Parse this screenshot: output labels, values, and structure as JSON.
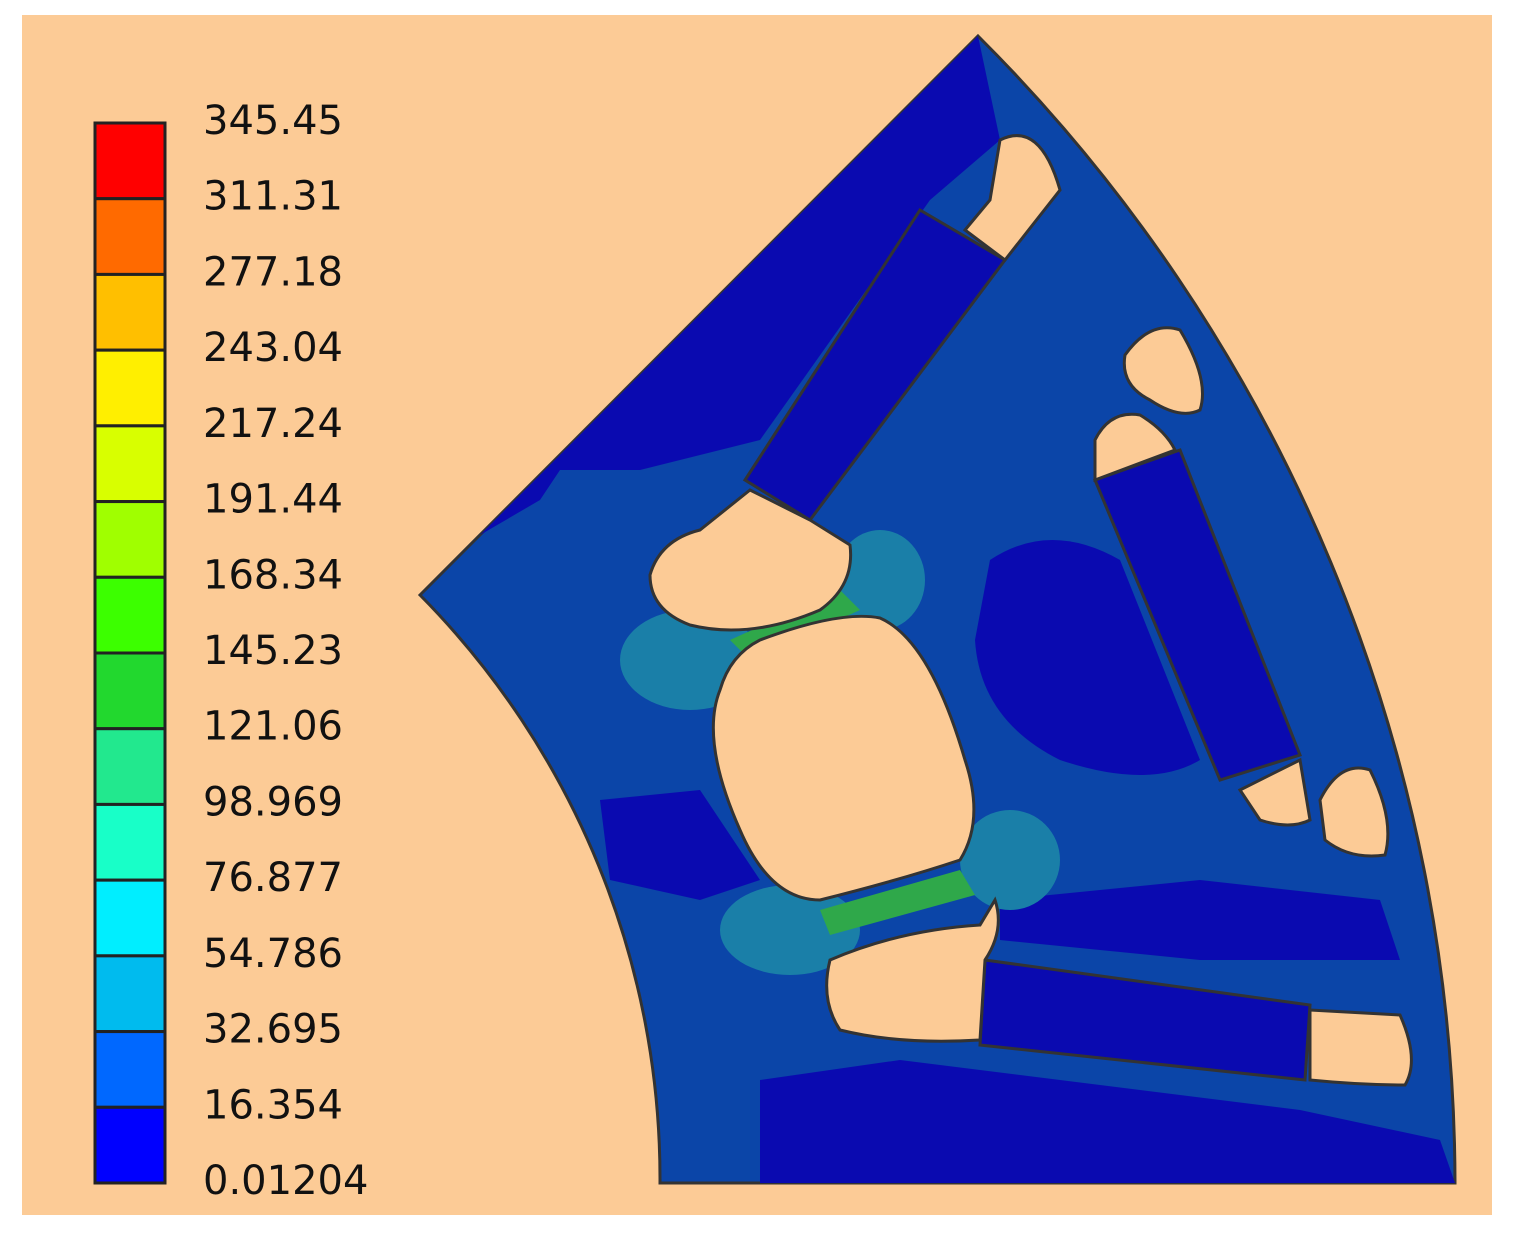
{
  "legend": {
    "labels": [
      "345.45",
      "311.31",
      "277.18",
      "243.04",
      "217.24",
      "191.44",
      "168.34",
      "145.23",
      "121.06",
      "98.969",
      "76.877",
      "54.786",
      "32.695",
      "16.354",
      "0.01204"
    ],
    "colors": [
      "#ff0000",
      "#ff6a00",
      "#ffbf00",
      "#ffef00",
      "#d8ff00",
      "#a0ff00",
      "#3cff00",
      "#22d82e",
      "#22e88e",
      "#18ffc8",
      "#00eeff",
      "#00bbee",
      "#0068ff",
      "#0000ff"
    ]
  }
}
